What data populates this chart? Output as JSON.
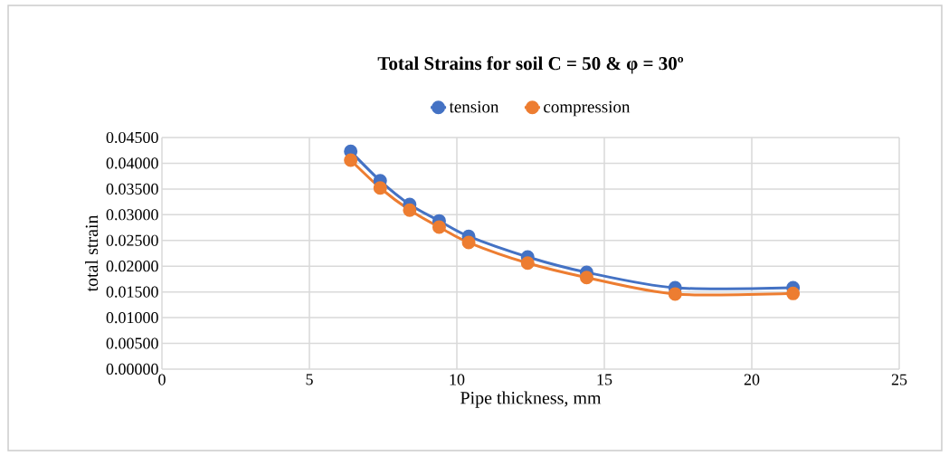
{
  "chart_data": {
    "type": "line",
    "title": "Total Strains for soil C = 50 & φ = 30º",
    "xlabel": "Pipe thickness, mm",
    "ylabel": "total strain",
    "x": [
      6.4,
      7.4,
      8.4,
      9.4,
      10.4,
      12.4,
      14.4,
      17.4,
      21.4
    ],
    "series": [
      {
        "name": "tension",
        "color": "#4472c4",
        "values": [
          0.0423,
          0.0366,
          0.032,
          0.0288,
          0.0258,
          0.0218,
          0.0188,
          0.0158,
          0.0158
        ]
      },
      {
        "name": "compression",
        "color": "#ed7d31",
        "values": [
          0.0406,
          0.0352,
          0.0309,
          0.0276,
          0.0246,
          0.0206,
          0.0178,
          0.0146,
          0.0147
        ]
      }
    ],
    "xlim": [
      0,
      25
    ],
    "xticks": [
      0,
      5,
      10,
      15,
      20,
      25
    ],
    "ylim": [
      0,
      0.045
    ],
    "yticks": [
      {
        "value": 0,
        "label": "0.00000"
      },
      {
        "value": 0.005,
        "label": "0.00500"
      },
      {
        "value": 0.01,
        "label": "0.01000"
      },
      {
        "value": 0.015,
        "label": "0.01500"
      },
      {
        "value": 0.02,
        "label": "0.02000"
      },
      {
        "value": 0.025,
        "label": "0.02500"
      },
      {
        "value": 0.03,
        "label": "0.03000"
      },
      {
        "value": 0.035,
        "label": "0.03500"
      },
      {
        "value": 0.04,
        "label": "0.04000"
      },
      {
        "value": 0.045,
        "label": "0.04500"
      }
    ],
    "grid": true,
    "legend": "top",
    "marker": "circle",
    "line_style": "solid"
  }
}
